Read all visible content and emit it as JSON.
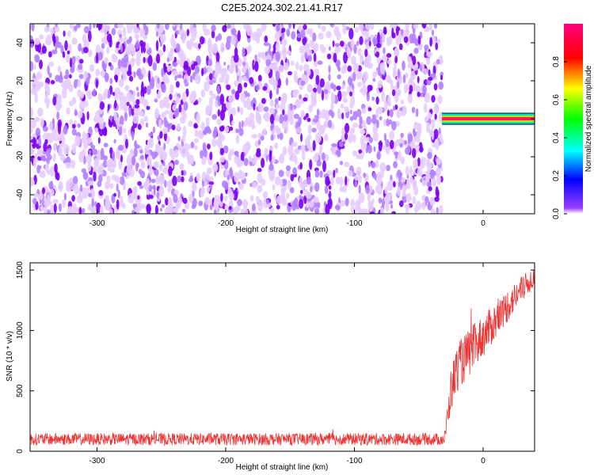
{
  "title": "C2E5.2024.302.21.41.R17",
  "chart_data": [
    {
      "type": "heatmap",
      "xlabel": "Height of straight line (km)",
      "ylabel": "Frequency (Hz)",
      "xlim": [
        -352,
        40
      ],
      "ylim": [
        -50,
        50
      ],
      "xticks": [
        -300,
        -200,
        -100,
        0
      ],
      "xtick_labels": [
        "-300",
        "-200",
        "-100",
        "0"
      ],
      "yticks": [
        -40,
        -20,
        0,
        20,
        40
      ],
      "ytick_labels": [
        "-40",
        "-20",
        "0",
        "20",
        "40"
      ],
      "noise_region_x": [
        -352,
        -32
      ],
      "signal_region_x": [
        -32,
        40
      ],
      "signal_frequency": 0,
      "colorbar": {
        "label": "Normalized spectral amplitude",
        "range": [
          0,
          1
        ],
        "ticks": [
          0,
          0.2,
          0.4,
          0.6,
          0.8
        ],
        "tick_labels": [
          "0.0",
          "0.2",
          "0.4",
          "0.6",
          "0.8"
        ],
        "colormap": [
          "#ffffff",
          "#7a00ff",
          "#0000ff",
          "#00ffff",
          "#00ff00",
          "#ffff00",
          "#ff0000",
          "#ff0080"
        ]
      },
      "colors": {
        "noise_light": "#e5ccff",
        "noise_mid": "#b27fff",
        "noise_dark": "#7a00ee",
        "signal_core": "#ff1493"
      }
    },
    {
      "type": "line",
      "xlabel": "Height of straight line (km)",
      "ylabel": "SNR (10 * v/v)",
      "xlim": [
        -352,
        40
      ],
      "ylim": [
        0,
        1560
      ],
      "xticks": [
        -300,
        -200,
        -100,
        0
      ],
      "xtick_labels": [
        "-300",
        "-200",
        "-100",
        "0"
      ],
      "yticks": [
        0,
        500,
        1000,
        1500
      ],
      "ytick_labels": [
        "0",
        "500",
        "1000",
        "1500"
      ],
      "series": [
        {
          "color": "#ee3333",
          "x": [
            -352,
            -300,
            -250,
            -200,
            -150,
            -100,
            -50,
            -30,
            -25,
            -20,
            -15,
            -10,
            -5,
            0,
            5,
            10,
            15,
            20,
            25,
            30,
            40
          ],
          "y_mean": [
            100,
            100,
            100,
            100,
            100,
            100,
            100,
            100,
            500,
            700,
            760,
            820,
            900,
            950,
            1020,
            1080,
            1150,
            1220,
            1280,
            1340,
            1450
          ],
          "y_spread": [
            50,
            50,
            50,
            50,
            50,
            50,
            50,
            50,
            180,
            200,
            200,
            200,
            180,
            180,
            160,
            160,
            140,
            140,
            120,
            110,
            90
          ]
        }
      ]
    }
  ]
}
